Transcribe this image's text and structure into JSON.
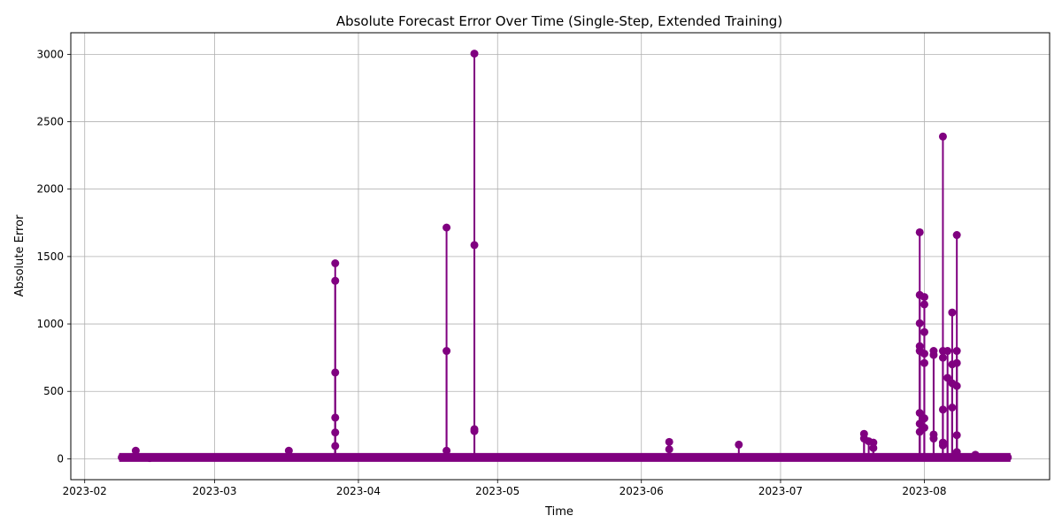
{
  "chart_data": {
    "type": "line",
    "title": "Absolute Forecast Error Over Time (Single-Step, Extended Training)",
    "xlabel": "Time",
    "ylabel": "Absolute Error",
    "x_ticks": [
      "2023-02",
      "2023-03",
      "2023-04",
      "2023-05",
      "2023-06",
      "2023-07",
      "2023-08"
    ],
    "y_ticks": [
      "0",
      "500",
      "1000",
      "1500",
      "2000",
      "2500",
      "3000"
    ],
    "xlim": [
      "2023-01-29",
      "2023-08-28"
    ],
    "ylim": [
      -155,
      3160
    ],
    "grid": true,
    "series": [
      {
        "color": "#800080",
        "marker": "circle",
        "baseline_range": [
          "2023-02-09",
          "2023-08-19"
        ],
        "baseline_value": 10,
        "points": [
          [
            "2023-02-09",
            10
          ],
          [
            "2023-02-12",
            60
          ],
          [
            "2023-02-15",
            5
          ],
          [
            "2023-03-17",
            60
          ],
          [
            "2023-03-27",
            1450
          ],
          [
            "2023-03-27",
            1320
          ],
          [
            "2023-03-27",
            640
          ],
          [
            "2023-03-27",
            305
          ],
          [
            "2023-03-27",
            195
          ],
          [
            "2023-03-27",
            95
          ],
          [
            "2023-04-20",
            1715
          ],
          [
            "2023-04-20",
            800
          ],
          [
            "2023-04-20",
            60
          ],
          [
            "2023-04-26",
            3005
          ],
          [
            "2023-04-26",
            1585
          ],
          [
            "2023-04-26",
            220
          ],
          [
            "2023-04-26",
            205
          ],
          [
            "2023-06-07",
            125
          ],
          [
            "2023-06-07",
            70
          ],
          [
            "2023-06-22",
            105
          ],
          [
            "2023-07-19",
            185
          ],
          [
            "2023-07-19",
            150
          ],
          [
            "2023-07-20",
            130
          ],
          [
            "2023-07-21",
            120
          ],
          [
            "2023-07-21",
            80
          ],
          [
            "2023-07-31",
            1680
          ],
          [
            "2023-07-31",
            1215
          ],
          [
            "2023-07-31",
            1005
          ],
          [
            "2023-07-31",
            835
          ],
          [
            "2023-07-31",
            800
          ],
          [
            "2023-07-31",
            340
          ],
          [
            "2023-07-31",
            260
          ],
          [
            "2023-07-31",
            200
          ],
          [
            "2023-08-01",
            1200
          ],
          [
            "2023-08-01",
            1145
          ],
          [
            "2023-08-01",
            940
          ],
          [
            "2023-08-01",
            780
          ],
          [
            "2023-08-01",
            710
          ],
          [
            "2023-08-01",
            300
          ],
          [
            "2023-08-01",
            230
          ],
          [
            "2023-08-03",
            800
          ],
          [
            "2023-08-03",
            770
          ],
          [
            "2023-08-03",
            180
          ],
          [
            "2023-08-03",
            150
          ],
          [
            "2023-08-05",
            2390
          ],
          [
            "2023-08-05",
            800
          ],
          [
            "2023-08-05",
            750
          ],
          [
            "2023-08-05",
            365
          ],
          [
            "2023-08-05",
            120
          ],
          [
            "2023-08-05",
            100
          ],
          [
            "2023-08-06",
            800
          ],
          [
            "2023-08-06",
            600
          ],
          [
            "2023-08-07",
            1085
          ],
          [
            "2023-08-07",
            700
          ],
          [
            "2023-08-07",
            560
          ],
          [
            "2023-08-07",
            380
          ],
          [
            "2023-08-08",
            1660
          ],
          [
            "2023-08-08",
            800
          ],
          [
            "2023-08-08",
            710
          ],
          [
            "2023-08-08",
            540
          ],
          [
            "2023-08-08",
            175
          ],
          [
            "2023-08-08",
            50
          ],
          [
            "2023-08-12",
            30
          ]
        ]
      }
    ]
  }
}
